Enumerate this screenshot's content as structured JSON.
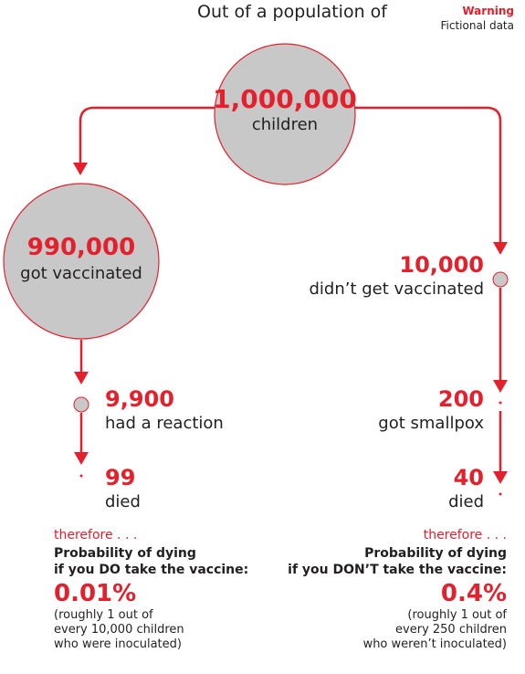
{
  "header": {
    "title": "Out of a population of",
    "warning_title": "Warning",
    "warning_subtitle": "Fictional data"
  },
  "colors": {
    "accent": "#e3202b",
    "circle_fill": "#c8c8c8",
    "circle_stroke": "#e3202b",
    "text": "#231f20"
  },
  "population": {
    "number": "1,000,000",
    "label": "children"
  },
  "vaccinated": {
    "number": "990,000",
    "label": "got vaccinated",
    "reaction": {
      "number": "9,900",
      "label": "had a reaction"
    },
    "died": {
      "number": "99",
      "label": "died"
    },
    "conclusion": {
      "therefore": "therefore . . .",
      "prob_line1": "Probability of dying",
      "prob_line2": "if you DO take the vaccine:",
      "percent": "0.01%",
      "note_line1": "(roughly 1 out of",
      "note_line2": "every 10,000 children",
      "note_line3": "who were inoculated)"
    }
  },
  "unvaccinated": {
    "number": "10,000",
    "label": "didn’t get vaccinated",
    "smallpox": {
      "number": "200",
      "label": "got smallpox"
    },
    "died": {
      "number": "40",
      "label": "died"
    },
    "conclusion": {
      "therefore": "therefore . . .",
      "prob_line1": "Probability of dying",
      "prob_line2": "if you DON’T take the vaccine:",
      "percent": "0.4%",
      "note_line1": "(roughly 1 out of",
      "note_line2": "every 250 children",
      "note_line3": "who weren’t inoculated)"
    }
  }
}
